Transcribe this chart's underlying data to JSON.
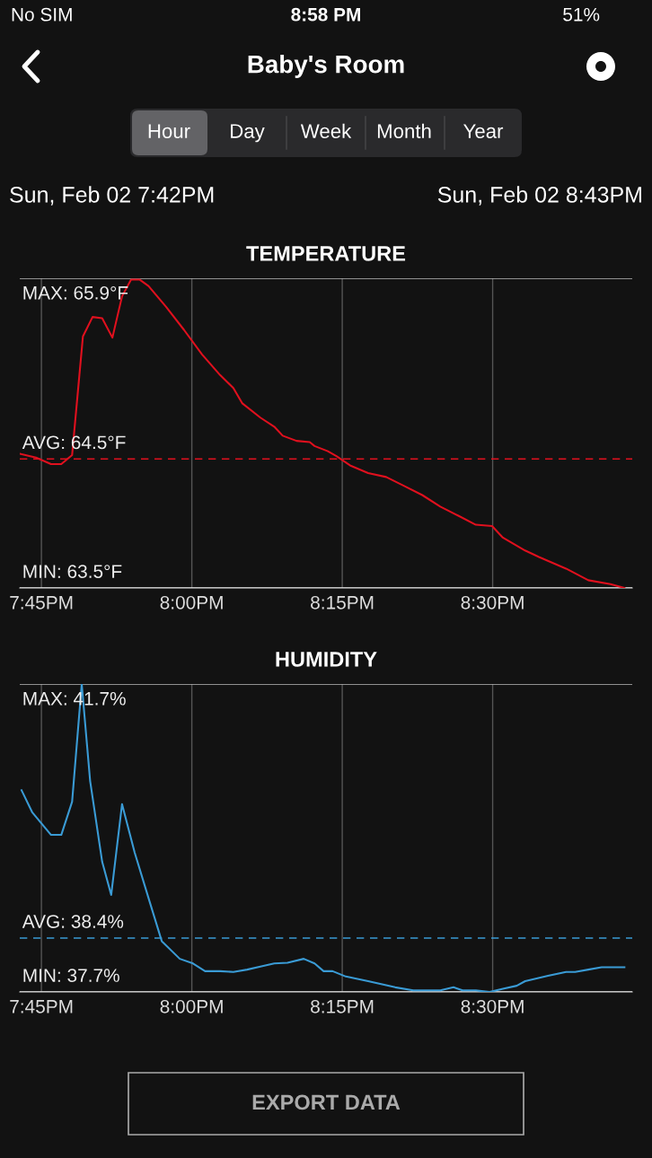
{
  "chart_data": [
    {
      "type": "other",
      "title": "Baby's Room",
      "annotations": [
        "No SIM",
        "8:58 PM",
        "51%",
        "Hour",
        "Day",
        "Week",
        "Month",
        "Year",
        "Sun, Feb 02 7:42PM",
        "Sun, Feb 02 8:43PM",
        "EXPORT DATA"
      ]
    },
    {
      "type": "line",
      "title": "TEMPERATURE",
      "xlim": [
        19.714,
        20.732
      ],
      "ylim": [
        63.5,
        65.9
      ],
      "grid": "x",
      "tick_labels": "x",
      "xticks": [
        {
          "value": 19.75,
          "label": "7:45PM"
        },
        {
          "value": 20,
          "label": "8:00PM"
        },
        {
          "value": 20.25,
          "label": "8:15PM"
        },
        {
          "value": 20.5,
          "label": "8:30PM"
        }
      ],
      "ref_lines": [
        {
          "axis": "y",
          "value": 65.9,
          "label": "MAX: 65.9°F",
          "color": "#bbbbbb",
          "line_style": "solid"
        },
        {
          "axis": "y",
          "value": 64.5,
          "label": "AVG: 64.5°F",
          "color": "#e0101e",
          "line_style": "dashed"
        },
        {
          "axis": "y",
          "value": 63.5,
          "label": "MIN: 63.5°F",
          "color": "#dddddd",
          "line_style": "solid"
        }
      ],
      "series": [
        {
          "color": "#e0101e",
          "x": [
            19.714,
            19.741,
            19.766,
            19.783,
            19.801,
            19.819,
            19.835,
            19.851,
            19.868,
            19.884,
            19.899,
            19.913,
            19.928,
            19.957,
            19.987,
            20.017,
            20.047,
            20.069,
            20.084,
            20.114,
            20.137,
            20.151,
            20.174,
            20.196,
            20.204,
            20.226,
            20.241,
            20.263,
            20.293,
            20.323,
            20.353,
            20.383,
            20.413,
            20.443,
            20.472,
            20.499,
            20.517,
            20.554,
            20.577,
            20.622,
            20.659,
            20.696,
            20.719
          ],
          "values": [
            64.54,
            64.51,
            64.46,
            64.46,
            64.53,
            65.45,
            65.6,
            65.59,
            65.44,
            65.76,
            65.89,
            65.89,
            65.84,
            65.68,
            65.5,
            65.31,
            65.15,
            65.05,
            64.93,
            64.82,
            64.75,
            64.68,
            64.64,
            64.63,
            64.6,
            64.56,
            64.52,
            64.45,
            64.39,
            64.36,
            64.29,
            64.22,
            64.13,
            64.06,
            63.99,
            63.98,
            63.89,
            63.79,
            63.74,
            63.65,
            63.56,
            63.53,
            63.5
          ]
        }
      ]
    },
    {
      "type": "line",
      "title": "HUMIDITY",
      "xlim": [
        19.714,
        20.732
      ],
      "ylim": [
        37.7,
        41.7
      ],
      "grid": "x",
      "tick_labels": "x",
      "xticks": [
        {
          "value": 19.75,
          "label": "7:45PM"
        },
        {
          "value": 20,
          "label": "8:00PM"
        },
        {
          "value": 20.25,
          "label": "8:15PM"
        },
        {
          "value": 20.5,
          "label": "8:30PM"
        }
      ],
      "ref_lines": [
        {
          "axis": "y",
          "value": 41.7,
          "label": "MAX: 41.7%",
          "color": "#bbbbbb",
          "line_style": "solid"
        },
        {
          "axis": "y",
          "value": 38.4,
          "label": "AVG: 38.4%",
          "color": "#3a9bd5",
          "line_style": "dashed"
        },
        {
          "axis": "y",
          "value": 37.7,
          "label": "MIN: 37.7%",
          "color": "#dddddd",
          "line_style": "solid"
        }
      ],
      "series": [
        {
          "color": "#3a9bd5",
          "x": [
            19.717,
            19.735,
            19.766,
            19.783,
            19.801,
            19.817,
            19.831,
            19.851,
            19.866,
            19.884,
            19.905,
            19.928,
            19.95,
            19.98,
            20.002,
            20.022,
            20.047,
            20.069,
            20.092,
            20.114,
            20.137,
            20.159,
            20.186,
            20.204,
            20.219,
            20.234,
            20.256,
            20.293,
            20.338,
            20.368,
            20.413,
            20.435,
            20.45,
            20.472,
            20.495,
            20.517,
            20.54,
            20.554,
            20.592,
            20.622,
            20.637,
            20.659,
            20.681,
            20.696,
            20.719
          ],
          "values": [
            40.32,
            40.03,
            39.74,
            39.74,
            40.17,
            41.7,
            40.44,
            39.39,
            38.96,
            40.14,
            39.51,
            38.92,
            38.36,
            38.13,
            38.07,
            37.97,
            37.97,
            37.96,
            37.99,
            38.03,
            38.07,
            38.08,
            38.13,
            38.07,
            37.97,
            37.97,
            37.9,
            37.84,
            37.76,
            37.72,
            37.72,
            37.76,
            37.72,
            37.72,
            37.7,
            37.74,
            37.78,
            37.84,
            37.91,
            37.96,
            37.96,
            37.99,
            38.02,
            38.02,
            38.02
          ]
        }
      ]
    }
  ]
}
